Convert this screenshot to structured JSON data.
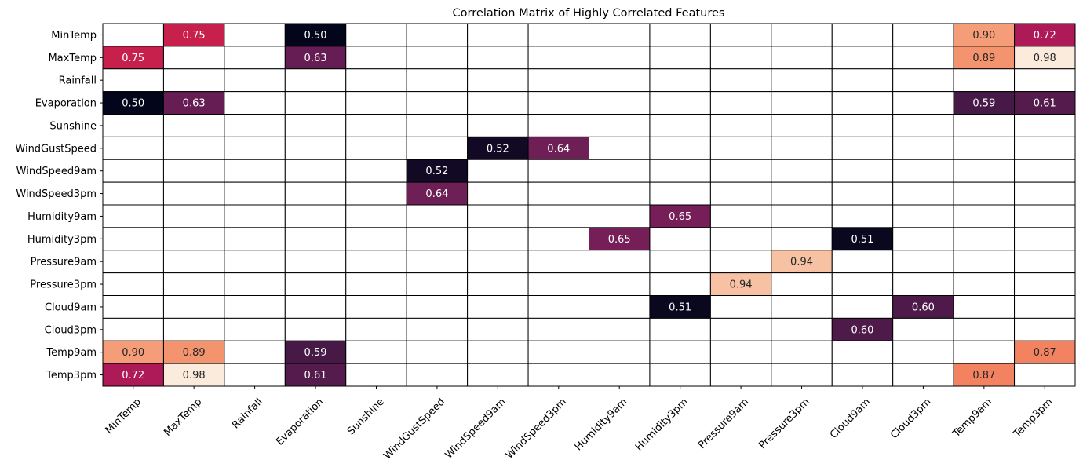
{
  "chart_data": {
    "type": "heatmap",
    "title": "Correlation Matrix of Highly Correlated Features",
    "features": [
      "MinTemp",
      "MaxTemp",
      "Rainfall",
      "Evaporation",
      "Sunshine",
      "WindGustSpeed",
      "WindSpeed9am",
      "WindSpeed3pm",
      "Humidity9am",
      "Humidity3pm",
      "Pressure9am",
      "Pressure3pm",
      "Cloud9am",
      "Cloud3pm",
      "Temp9am",
      "Temp3pm"
    ],
    "value_range": [
      0.5,
      0.98
    ],
    "colormap": "rocket",
    "mask_rule": "only |r| >= 0.5 shown, diagonal hidden",
    "matrix": [
      [
        null,
        0.75,
        null,
        0.5,
        null,
        null,
        null,
        null,
        null,
        null,
        null,
        null,
        null,
        null,
        0.9,
        0.72
      ],
      [
        0.75,
        null,
        null,
        0.63,
        null,
        null,
        null,
        null,
        null,
        null,
        null,
        null,
        null,
        null,
        0.89,
        0.98
      ],
      [
        null,
        null,
        null,
        null,
        null,
        null,
        null,
        null,
        null,
        null,
        null,
        null,
        null,
        null,
        null,
        null
      ],
      [
        0.5,
        0.63,
        null,
        null,
        null,
        null,
        null,
        null,
        null,
        null,
        null,
        null,
        null,
        null,
        0.59,
        0.61
      ],
      [
        null,
        null,
        null,
        null,
        null,
        null,
        null,
        null,
        null,
        null,
        null,
        null,
        null,
        null,
        null,
        null
      ],
      [
        null,
        null,
        null,
        null,
        null,
        null,
        0.52,
        0.64,
        null,
        null,
        null,
        null,
        null,
        null,
        null,
        null
      ],
      [
        null,
        null,
        null,
        null,
        null,
        0.52,
        null,
        null,
        null,
        null,
        null,
        null,
        null,
        null,
        null,
        null
      ],
      [
        null,
        null,
        null,
        null,
        null,
        0.64,
        null,
        null,
        null,
        null,
        null,
        null,
        null,
        null,
        null,
        null
      ],
      [
        null,
        null,
        null,
        null,
        null,
        null,
        null,
        null,
        null,
        0.65,
        null,
        null,
        null,
        null,
        null,
        null
      ],
      [
        null,
        null,
        null,
        null,
        null,
        null,
        null,
        null,
        0.65,
        null,
        null,
        null,
        0.51,
        null,
        null,
        null
      ],
      [
        null,
        null,
        null,
        null,
        null,
        null,
        null,
        null,
        null,
        null,
        null,
        0.94,
        null,
        null,
        null,
        null
      ],
      [
        null,
        null,
        null,
        null,
        null,
        null,
        null,
        null,
        null,
        null,
        0.94,
        null,
        null,
        null,
        null,
        null
      ],
      [
        null,
        null,
        null,
        null,
        null,
        null,
        null,
        null,
        null,
        0.51,
        null,
        null,
        null,
        0.6,
        null,
        null
      ],
      [
        null,
        null,
        null,
        null,
        null,
        null,
        null,
        null,
        null,
        null,
        null,
        null,
        0.6,
        null,
        null,
        null
      ],
      [
        0.9,
        0.89,
        null,
        0.59,
        null,
        null,
        null,
        null,
        null,
        null,
        null,
        null,
        null,
        null,
        null,
        0.87
      ],
      [
        0.72,
        0.98,
        null,
        0.61,
        null,
        null,
        null,
        null,
        null,
        null,
        null,
        null,
        null,
        null,
        0.87,
        null
      ]
    ]
  }
}
